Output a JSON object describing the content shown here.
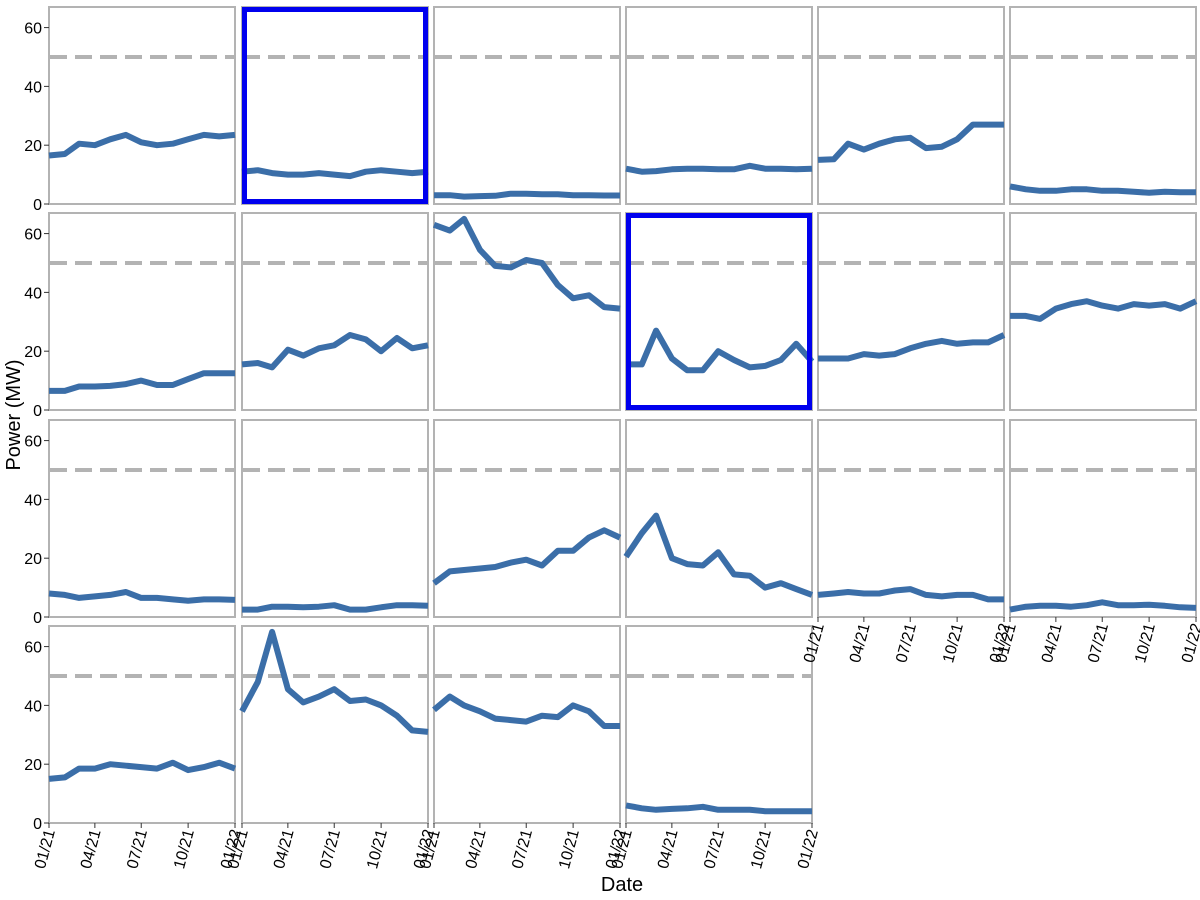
{
  "chart_data": {
    "type": "line",
    "layout": "small-multiples",
    "xlabel": "Date",
    "ylabel": "Power (MW)",
    "x": [
      "2021-01-01",
      "2021-02-01",
      "2021-03-01",
      "2021-04-01",
      "2021-05-01",
      "2021-06-01",
      "2021-07-01",
      "2021-08-01",
      "2021-09-01",
      "2021-10-01",
      "2021-11-01",
      "2021-12-01",
      "2022-01-01"
    ],
    "x_tick_values": [
      "2021-01-01",
      "2021-04-01",
      "2021-07-01",
      "2021-10-01",
      "2022-01-01"
    ],
    "x_tick_labels": [
      "01/21",
      "04/21",
      "07/21",
      "10/21",
      "01/22"
    ],
    "y_ticks": [
      0,
      20,
      40,
      60
    ],
    "ylim": [
      0,
      67
    ],
    "reference_line": {
      "y": 50,
      "style": "dashed",
      "color": "#b3b3b3"
    },
    "line_color": "#3b6ea8",
    "highlight_color": "#0000ee",
    "grid": false,
    "panels": [
      {
        "values": [
          16.5,
          17,
          20.5,
          20,
          22,
          23.5,
          21,
          20,
          20.5,
          22,
          23.5,
          23,
          23.5
        ]
      },
      {
        "highlighted": true,
        "values": [
          11,
          11.5,
          10.5,
          10,
          10,
          10.5,
          10,
          9.5,
          11,
          11.5,
          11,
          10.5,
          11
        ]
      },
      {
        "values": [
          3,
          3,
          2.5,
          2.7,
          2.8,
          3.5,
          3.5,
          3.3,
          3.3,
          3,
          3,
          2.9,
          2.9
        ]
      },
      {
        "values": [
          12,
          11,
          11.2,
          11.8,
          12,
          12,
          11.8,
          11.8,
          13,
          12,
          12,
          11.8,
          12
        ]
      },
      {
        "values": [
          15,
          15.2,
          20.5,
          18.5,
          20.5,
          22,
          22.5,
          19,
          19.5,
          22,
          27,
          27,
          27
        ]
      },
      {
        "values": [
          6,
          5,
          4.5,
          4.5,
          5,
          5,
          4.5,
          4.5,
          4.2,
          3.8,
          4.2,
          4,
          4
        ]
      },
      {
        "values": [
          6.5,
          6.5,
          8,
          8,
          8.2,
          8.8,
          10,
          8.5,
          8.5,
          10.5,
          12.5,
          12.5,
          12.5
        ]
      },
      {
        "values": [
          15.5,
          16,
          14.5,
          20.5,
          18.5,
          21,
          22,
          25.5,
          24,
          20,
          24.5,
          21,
          22
        ]
      },
      {
        "values": [
          63,
          61,
          65,
          54.5,
          49,
          48.5,
          51,
          50,
          42.5,
          38,
          39,
          35,
          34.5
        ]
      },
      {
        "highlighted": true,
        "values": [
          15.5,
          15.5,
          27,
          17.5,
          13.5,
          13.5,
          20,
          17,
          14.5,
          15,
          17,
          22.5,
          16.5
        ]
      },
      {
        "values": [
          17.5,
          17.5,
          17.5,
          19,
          18.5,
          19,
          21,
          22.5,
          23.5,
          22.5,
          23,
          23,
          25.5
        ]
      },
      {
        "values": [
          32,
          32,
          31,
          34.5,
          36,
          37,
          35.5,
          34.5,
          36,
          35.5,
          36,
          34.5,
          37
        ]
      },
      {
        "values": [
          8,
          7.5,
          6.5,
          7,
          7.5,
          8.5,
          6.5,
          6.5,
          6,
          5.5,
          6,
          6,
          5.8
        ]
      },
      {
        "values": [
          2.5,
          2.5,
          3.5,
          3.5,
          3.3,
          3.5,
          4,
          2.5,
          2.5,
          3.3,
          4,
          4,
          3.8
        ]
      },
      {
        "values": [
          11.5,
          15.5,
          16,
          16.5,
          17,
          18.5,
          19.5,
          17.5,
          22.5,
          22.5,
          27,
          29.5,
          27
        ]
      },
      {
        "values": [
          20.5,
          28.5,
          34.5,
          20,
          18,
          17.5,
          22,
          14.5,
          14,
          10,
          11.5,
          9.5,
          7.5
        ]
      },
      {
        "values": [
          7.5,
          8,
          8.5,
          8,
          8,
          9,
          9.5,
          7.5,
          7,
          7.5,
          7.5,
          6,
          6
        ]
      },
      {
        "values": [
          2.5,
          3.5,
          3.8,
          3.8,
          3.5,
          4,
          5,
          4,
          4,
          4.2,
          3.8,
          3.3,
          3.1
        ]
      },
      {
        "values": [
          15,
          15.5,
          18.5,
          18.5,
          20,
          19.5,
          19,
          18.5,
          20.5,
          18,
          19,
          20.5,
          18.5
        ]
      },
      {
        "values": [
          38,
          48,
          65,
          45.5,
          41,
          43,
          45.5,
          41.5,
          42,
          40,
          36.5,
          31.5,
          31
        ]
      },
      {
        "values": [
          38.5,
          43,
          40,
          38,
          35.5,
          35,
          34.5,
          36.5,
          36,
          40,
          38,
          33,
          33
        ]
      },
      {
        "values": [
          6,
          5,
          4.5,
          4.8,
          5,
          5.5,
          4.5,
          4.5,
          4.5,
          4,
          4,
          4,
          4
        ]
      }
    ]
  }
}
